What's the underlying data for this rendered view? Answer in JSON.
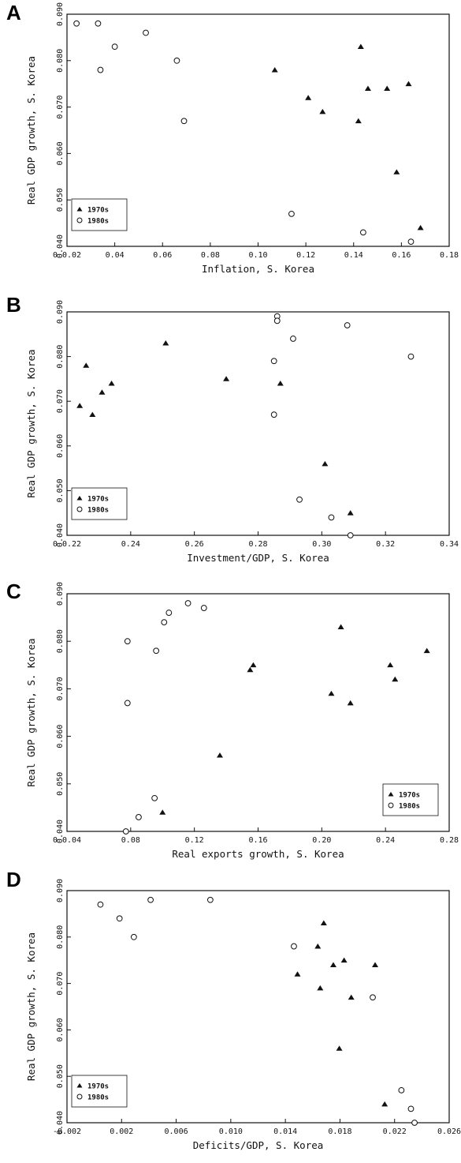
{
  "chart_data": [
    {
      "type": "scatter",
      "panel_label": "A",
      "xlabel": "Inflation, S. Korea",
      "ylabel": "Real GDP growth, S. Korea",
      "xlim": [
        0.02,
        0.18
      ],
      "ylim": [
        0.04,
        0.09
      ],
      "x_ticks": [
        "0 0.02",
        "0.04",
        "0.06",
        "0.08",
        "0.10",
        "0.12",
        "0.14",
        "0.16",
        "0.18"
      ],
      "y_ticks": [
        "0.040",
        "0.050",
        "0.060",
        "0.070",
        "0.080",
        "0.090"
      ],
      "legend_position": "bottom-left",
      "series": [
        {
          "name": "1970s",
          "marker": "filled-triangle",
          "points": [
            [
              0.107,
              0.078
            ],
            [
              0.121,
              0.072
            ],
            [
              0.127,
              0.069
            ],
            [
              0.142,
              0.067
            ],
            [
              0.143,
              0.083
            ],
            [
              0.146,
              0.074
            ],
            [
              0.154,
              0.074
            ],
            [
              0.158,
              0.056
            ],
            [
              0.163,
              0.075
            ],
            [
              0.168,
              0.044
            ]
          ]
        },
        {
          "name": "1980s",
          "marker": "open-circle",
          "points": [
            [
              0.024,
              0.088
            ],
            [
              0.033,
              0.088
            ],
            [
              0.034,
              0.078
            ],
            [
              0.04,
              0.083
            ],
            [
              0.053,
              0.086
            ],
            [
              0.066,
              0.08
            ],
            [
              0.069,
              0.067
            ],
            [
              0.114,
              0.047
            ],
            [
              0.144,
              0.043
            ],
            [
              0.164,
              0.041
            ]
          ]
        }
      ]
    },
    {
      "type": "scatter",
      "panel_label": "B",
      "xlabel": "Investment/GDP, S. Korea",
      "ylabel": "Real GDP growth, S. Korea",
      "xlim": [
        0.22,
        0.34
      ],
      "ylim": [
        0.04,
        0.09
      ],
      "x_ticks": [
        "0 0.22",
        "0.24",
        "0.26",
        "0.28",
        "0.30",
        "0.32",
        "0.34"
      ],
      "y_ticks": [
        "0.040",
        "0.050",
        "0.060",
        "0.070",
        "0.080",
        "0.090"
      ],
      "legend_position": "bottom-left",
      "series": [
        {
          "name": "1970s",
          "marker": "filled-triangle",
          "points": [
            [
              0.224,
              0.069
            ],
            [
              0.226,
              0.078
            ],
            [
              0.228,
              0.067
            ],
            [
              0.231,
              0.072
            ],
            [
              0.234,
              0.074
            ],
            [
              0.251,
              0.083
            ],
            [
              0.27,
              0.075
            ],
            [
              0.287,
              0.074
            ],
            [
              0.301,
              0.056
            ],
            [
              0.309,
              0.045
            ]
          ]
        },
        {
          "name": "1980s",
          "marker": "open-circle",
          "points": [
            [
              0.285,
              0.079
            ],
            [
              0.286,
              0.089
            ],
            [
              0.286,
              0.088
            ],
            [
              0.285,
              0.067
            ],
            [
              0.291,
              0.084
            ],
            [
              0.293,
              0.048
            ],
            [
              0.303,
              0.044
            ],
            [
              0.308,
              0.087
            ],
            [
              0.309,
              0.04
            ],
            [
              0.328,
              0.08
            ]
          ]
        }
      ]
    },
    {
      "type": "scatter",
      "panel_label": "C",
      "xlabel": "Real exports growth, S. Korea",
      "ylabel": "Real GDP growth, S. Korea",
      "xlim": [
        0.04,
        0.28
      ],
      "ylim": [
        0.04,
        0.09
      ],
      "x_ticks": [
        "0 0.04",
        "0.08",
        "0.12",
        "0.16",
        "0.20",
        "0.24",
        "0.28"
      ],
      "y_ticks": [
        "0.040",
        "0.050",
        "0.060",
        "0.070",
        "0.080",
        "0.090"
      ],
      "legend_position": "bottom-right",
      "series": [
        {
          "name": "1970s",
          "marker": "filled-triangle",
          "points": [
            [
              0.1,
              0.044
            ],
            [
              0.136,
              0.056
            ],
            [
              0.155,
              0.074
            ],
            [
              0.157,
              0.075
            ],
            [
              0.206,
              0.069
            ],
            [
              0.212,
              0.083
            ],
            [
              0.218,
              0.067
            ],
            [
              0.243,
              0.075
            ],
            [
              0.246,
              0.072
            ],
            [
              0.266,
              0.078
            ]
          ]
        },
        {
          "name": "1980s",
          "marker": "open-circle",
          "points": [
            [
              0.077,
              0.04
            ],
            [
              0.078,
              0.08
            ],
            [
              0.078,
              0.067
            ],
            [
              0.085,
              0.043
            ],
            [
              0.095,
              0.047
            ],
            [
              0.096,
              0.078
            ],
            [
              0.101,
              0.084
            ],
            [
              0.104,
              0.086
            ],
            [
              0.116,
              0.088
            ],
            [
              0.126,
              0.087
            ]
          ]
        }
      ]
    },
    {
      "type": "scatter",
      "panel_label": "D",
      "xlabel": "Deficits/GDP, S. Korea",
      "ylabel": "Real GDP growth, S. Korea",
      "xlim": [
        -0.006,
        0.026
      ],
      "ylim": [
        0.04,
        0.09
      ],
      "x_ticks": [
        "-0.002",
        "0.002",
        "0.006",
        "0.010",
        "0.014",
        "0.018",
        "0.022",
        "0.026"
      ],
      "y_ticks": [
        "0.040",
        "0.050",
        "0.060",
        "0.070",
        "0.080",
        "0.090"
      ],
      "legend_position": "bottom-left",
      "series": [
        {
          "name": "1970s",
          "marker": "filled-triangle",
          "points": [
            [
              0.0133,
              0.072
            ],
            [
              0.015,
              0.078
            ],
            [
              0.0152,
              0.069
            ],
            [
              0.0155,
              0.083
            ],
            [
              0.0163,
              0.074
            ],
            [
              0.0168,
              0.056
            ],
            [
              0.0172,
              0.075
            ],
            [
              0.0178,
              0.067
            ],
            [
              0.0198,
              0.074
            ],
            [
              0.0206,
              0.044
            ]
          ]
        },
        {
          "name": "1980s",
          "marker": "open-circle",
          "points": [
            [
              -0.0032,
              0.087
            ],
            [
              -0.0016,
              0.084
            ],
            [
              -0.0004,
              0.08
            ],
            [
              0.001,
              0.088
            ],
            [
              0.006,
              0.088
            ],
            [
              0.013,
              0.078
            ],
            [
              0.0196,
              0.067
            ],
            [
              0.022,
              0.047
            ],
            [
              0.0228,
              0.043
            ],
            [
              0.0231,
              0.04
            ]
          ]
        }
      ]
    }
  ]
}
